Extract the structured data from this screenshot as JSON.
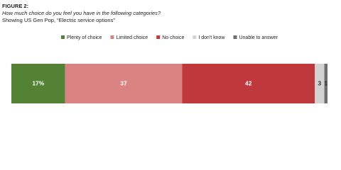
{
  "chart_data": {
    "type": "stacked-bar",
    "orientation": "horizontal",
    "title": "FIGURE 2:",
    "subtitle": "How much choice do you feel you have in the following categories?",
    "note": "Showing US Gen Pop, “Electric service options”",
    "categories": [
      null
    ],
    "xlim": [
      0,
      100
    ],
    "series": [
      {
        "name": "Plenty of choice",
        "color": "#548235",
        "values": [
          17
        ],
        "value_labels": [
          "17%"
        ]
      },
      {
        "name": "Limited choice",
        "color": "#d98383",
        "values": [
          37
        ]
      },
      {
        "name": "No choice",
        "color": "#bf383c",
        "values": [
          42
        ]
      },
      {
        "name": "I don't know",
        "color": "#d3d3d3",
        "values": [
          3
        ]
      },
      {
        "name": "Unable to answer",
        "color": "#6e6e6e",
        "values": [
          1
        ]
      }
    ],
    "legend": "top"
  }
}
